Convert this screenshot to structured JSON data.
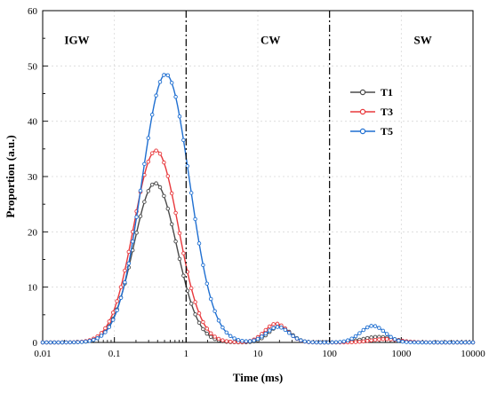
{
  "chart_data": {
    "type": "line",
    "title": "",
    "xlabel": "Time (ms)",
    "ylabel": "Proportion (a.u.)",
    "x_scale": "log",
    "xlim": [
      0.01,
      10000
    ],
    "ylim": [
      0,
      60
    ],
    "x_ticks": [
      "0.01",
      "0.1",
      "1",
      "10",
      "100",
      "1000",
      "10000"
    ],
    "y_ticks": [
      "0",
      "10",
      "20",
      "30",
      "40",
      "50",
      "60"
    ],
    "grid": true,
    "legend_position": "right",
    "regions": [
      {
        "label": "IGW",
        "x_center": 0.03,
        "y": 54
      },
      {
        "label": "CW",
        "x_center": 15,
        "y": 54
      },
      {
        "label": "SW",
        "x_center": 2000,
        "y": 54
      }
    ],
    "boundaries": [
      {
        "x": 1
      },
      {
        "x": 100
      }
    ],
    "series": [
      {
        "name": "T1",
        "color": "#4a4a4a",
        "peaks": [
          {
            "amp": 28.8,
            "center": 0.37,
            "width": 0.3
          },
          {
            "amp": 2.9,
            "center": 20,
            "width": 0.15
          },
          {
            "amp": 1.0,
            "center": 480,
            "width": 0.22
          }
        ],
        "zero_ranges": [
          [
            1.2,
            3.0,
            8.5
          ],
          [
            60,
            150
          ]
        ]
      },
      {
        "name": "T3",
        "color": "#e8383c",
        "peaks": [
          {
            "amp": 34.7,
            "center": 0.38,
            "width": 0.31
          },
          {
            "amp": 3.4,
            "center": 18,
            "width": 0.16
          },
          {
            "amp": 0.6,
            "center": 600,
            "width": 0.2
          }
        ],
        "zero_ranges": [
          [
            1.3,
            3.5,
            7.5
          ],
          [
            55,
            160
          ]
        ]
      },
      {
        "name": "T5",
        "color": "#1f6fd1",
        "peaks": [
          {
            "amp": 48.5,
            "center": 0.52,
            "width": 0.33
          },
          {
            "amp": 2.8,
            "center": 19,
            "width": 0.16
          },
          {
            "amp": 3.0,
            "center": 400,
            "width": 0.17
          }
        ],
        "zero_ranges": [
          [
            2.0,
            7.0,
            9.0
          ],
          [
            60,
            140
          ]
        ]
      }
    ]
  }
}
